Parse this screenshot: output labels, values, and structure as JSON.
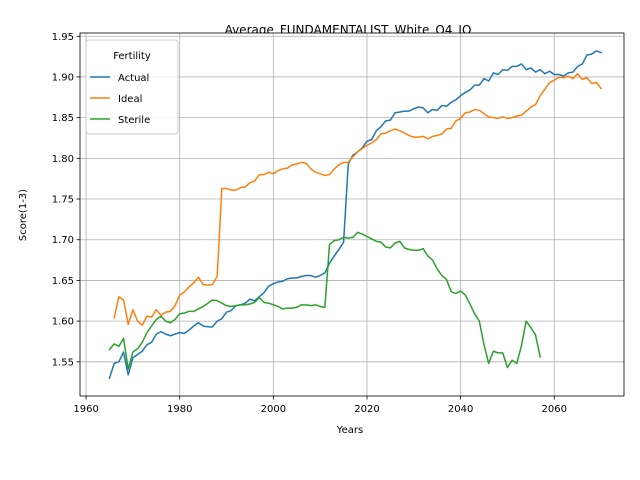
{
  "chart_data": {
    "type": "line",
    "title": "Average_FUNDAMENTALIST_White_Q4_IQ",
    "xlabel": "Years",
    "ylabel": "Score(1-3)",
    "xlim": [
      1958.7,
      2074.9
    ],
    "ylim": [
      1.508,
      1.954
    ],
    "x_ticks": [
      1960,
      1980,
      2000,
      2020,
      2040,
      2060
    ],
    "y_ticks": [
      1.55,
      1.6,
      1.65,
      1.7,
      1.75,
      1.8,
      1.85,
      1.9,
      1.95
    ],
    "x_tick_labels": [
      "1960",
      "1980",
      "2000",
      "2020",
      "2040",
      "2060"
    ],
    "y_tick_labels": [
      "1.55",
      "1.60",
      "1.65",
      "1.70",
      "1.75",
      "1.80",
      "1.85",
      "1.90",
      "1.95"
    ],
    "grid": true,
    "legend": {
      "title": "Fertility",
      "placement": "top-left"
    },
    "series": [
      {
        "name": "Actual",
        "color": "#1f77b4",
        "x": [
          1965,
          1966,
          1967,
          1968,
          1969,
          1970,
          1971,
          1972,
          1973,
          1974,
          1975,
          1976,
          1977,
          1978,
          1979,
          1980,
          1981,
          1982,
          1983,
          1984,
          1985,
          1986,
          1987,
          1988,
          1989,
          1990,
          1991,
          1992,
          1993,
          1994,
          1995,
          1996,
          1997,
          1998,
          1999,
          2000,
          2001,
          2002,
          2003,
          2004,
          2005,
          2006,
          2007,
          2008,
          2009,
          2010,
          2011,
          2012,
          2013,
          2014,
          2015,
          2016,
          2017,
          2018,
          2019,
          2020,
          2021,
          2022,
          2023,
          2024,
          2025,
          2026,
          2027,
          2028,
          2029,
          2030,
          2031,
          2032,
          2033,
          2034,
          2035,
          2036,
          2037,
          2038,
          2039,
          2040,
          2041,
          2042,
          2043,
          2044,
          2045,
          2046,
          2047,
          2048,
          2049,
          2050,
          2051,
          2052,
          2053,
          2054,
          2055,
          2056,
          2057,
          2058,
          2059,
          2060,
          2061,
          2062,
          2063,
          2064,
          2065,
          2066,
          2067,
          2068,
          2069,
          2070
        ],
        "values": [
          1.53,
          1.548,
          1.55,
          1.562,
          1.534,
          1.555,
          1.559,
          1.563,
          1.571,
          1.574,
          1.584,
          1.587,
          1.584,
          1.582,
          1.584,
          1.586,
          1.585,
          1.589,
          1.594,
          1.598,
          1.594,
          1.593,
          1.593,
          1.6,
          1.603,
          1.611,
          1.613,
          1.619,
          1.62,
          1.622,
          1.627,
          1.625,
          1.63,
          1.635,
          1.643,
          1.646,
          1.648,
          1.649,
          1.652,
          1.653,
          1.653,
          1.655,
          1.656,
          1.656,
          1.654,
          1.656,
          1.659,
          1.671,
          1.68,
          1.688,
          1.697,
          1.793,
          1.804,
          1.808,
          1.813,
          1.821,
          1.823,
          1.834,
          1.839,
          1.846,
          1.847,
          1.856,
          1.857,
          1.858,
          1.858,
          1.861,
          1.863,
          1.862,
          1.856,
          1.86,
          1.859,
          1.865,
          1.864,
          1.869,
          1.872,
          1.877,
          1.881,
          1.884,
          1.89,
          1.89,
          1.898,
          1.895,
          1.905,
          1.903,
          1.909,
          1.908,
          1.913,
          1.913,
          1.916,
          1.909,
          1.911,
          1.906,
          1.909,
          1.904,
          1.907,
          1.903,
          1.903,
          1.901,
          1.905,
          1.906,
          1.913,
          1.916,
          1.927,
          1.928,
          1.932,
          1.93
        ]
      },
      {
        "name": "Ideal",
        "color": "#ff7f0e",
        "x": [
          1966,
          1967,
          1968,
          1969,
          1970,
          1971,
          1972,
          1973,
          1974,
          1975,
          1976,
          1977,
          1978,
          1979,
          1980,
          1981,
          1982,
          1983,
          1984,
          1985,
          1986,
          1987,
          1988,
          1989,
          1990,
          1991,
          1992,
          1993,
          1994,
          1995,
          1996,
          1997,
          1998,
          1999,
          2000,
          2001,
          2002,
          2003,
          2004,
          2005,
          2006,
          2007,
          2008,
          2009,
          2010,
          2011,
          2012,
          2013,
          2014,
          2015,
          2016,
          2017,
          2018,
          2019,
          2020,
          2021,
          2022,
          2023,
          2024,
          2025,
          2026,
          2027,
          2028,
          2029,
          2030,
          2031,
          2032,
          2033,
          2034,
          2035,
          2036,
          2037,
          2038,
          2039,
          2040,
          2041,
          2042,
          2043,
          2044,
          2045,
          2046,
          2047,
          2048,
          2049,
          2050,
          2051,
          2052,
          2053,
          2054,
          2055,
          2056,
          2057,
          2058,
          2059,
          2060,
          2061,
          2062,
          2063,
          2064,
          2065,
          2066,
          2067,
          2068,
          2069,
          2070
        ],
        "values": [
          1.604,
          1.63,
          1.626,
          1.596,
          1.614,
          1.6,
          1.595,
          1.606,
          1.605,
          1.614,
          1.607,
          1.611,
          1.612,
          1.619,
          1.632,
          1.636,
          1.642,
          1.647,
          1.654,
          1.645,
          1.644,
          1.645,
          1.655,
          1.763,
          1.763,
          1.761,
          1.761,
          1.764,
          1.765,
          1.77,
          1.772,
          1.78,
          1.78,
          1.783,
          1.781,
          1.785,
          1.787,
          1.788,
          1.792,
          1.793,
          1.795,
          1.794,
          1.787,
          1.783,
          1.781,
          1.779,
          1.78,
          1.787,
          1.792,
          1.795,
          1.795,
          1.802,
          1.808,
          1.812,
          1.816,
          1.819,
          1.823,
          1.83,
          1.831,
          1.834,
          1.836,
          1.834,
          1.831,
          1.828,
          1.826,
          1.826,
          1.827,
          1.824,
          1.827,
          1.828,
          1.83,
          1.836,
          1.837,
          1.846,
          1.849,
          1.856,
          1.857,
          1.86,
          1.859,
          1.855,
          1.851,
          1.85,
          1.849,
          1.851,
          1.849,
          1.85,
          1.852,
          1.853,
          1.858,
          1.863,
          1.866,
          1.877,
          1.885,
          1.893,
          1.896,
          1.9,
          1.899,
          1.901,
          1.898,
          1.904,
          1.897,
          1.899,
          1.892,
          1.893,
          1.886
        ]
      },
      {
        "name": "Sterile",
        "color": "#2ca02c",
        "x": [
          1965,
          1966,
          1967,
          1968,
          1969,
          1970,
          1971,
          1972,
          1973,
          1974,
          1975,
          1976,
          1977,
          1978,
          1979,
          1980,
          1981,
          1982,
          1983,
          1984,
          1985,
          1986,
          1987,
          1988,
          1989,
          1990,
          1991,
          1992,
          1993,
          1994,
          1995,
          1996,
          1997,
          1998,
          1999,
          2000,
          2001,
          2002,
          2003,
          2004,
          2005,
          2006,
          2007,
          2008,
          2009,
          2010,
          2011,
          2012,
          2013,
          2014,
          2015,
          2016,
          2017,
          2018,
          2019,
          2020,
          2021,
          2022,
          2023,
          2024,
          2025,
          2026,
          2027,
          2028,
          2029,
          2030,
          2031,
          2032,
          2033,
          2034,
          2035,
          2036,
          2037,
          2038,
          2039,
          2040,
          2041,
          2042,
          2043,
          2044,
          2045,
          2046,
          2047,
          2048,
          2049,
          2050,
          2051,
          2052,
          2053,
          2054,
          2055,
          2056,
          2057
        ],
        "values": [
          1.565,
          1.572,
          1.569,
          1.579,
          1.541,
          1.562,
          1.566,
          1.574,
          1.586,
          1.594,
          1.602,
          1.606,
          1.6,
          1.598,
          1.602,
          1.609,
          1.61,
          1.612,
          1.612,
          1.615,
          1.618,
          1.622,
          1.626,
          1.625,
          1.622,
          1.619,
          1.618,
          1.619,
          1.62,
          1.62,
          1.621,
          1.623,
          1.629,
          1.623,
          1.622,
          1.62,
          1.618,
          1.615,
          1.616,
          1.616,
          1.617,
          1.62,
          1.62,
          1.619,
          1.62,
          1.618,
          1.617,
          1.694,
          1.699,
          1.7,
          1.703,
          1.702,
          1.703,
          1.709,
          1.707,
          1.704,
          1.701,
          1.698,
          1.697,
          1.691,
          1.69,
          1.696,
          1.698,
          1.69,
          1.688,
          1.687,
          1.687,
          1.689,
          1.68,
          1.675,
          1.664,
          1.656,
          1.651,
          1.636,
          1.634,
          1.637,
          1.632,
          1.621,
          1.609,
          1.6,
          1.571,
          1.548,
          1.563,
          1.561,
          1.561,
          1.543,
          1.552,
          1.548,
          1.57,
          1.6,
          1.592,
          1.583,
          1.556
        ]
      }
    ]
  }
}
